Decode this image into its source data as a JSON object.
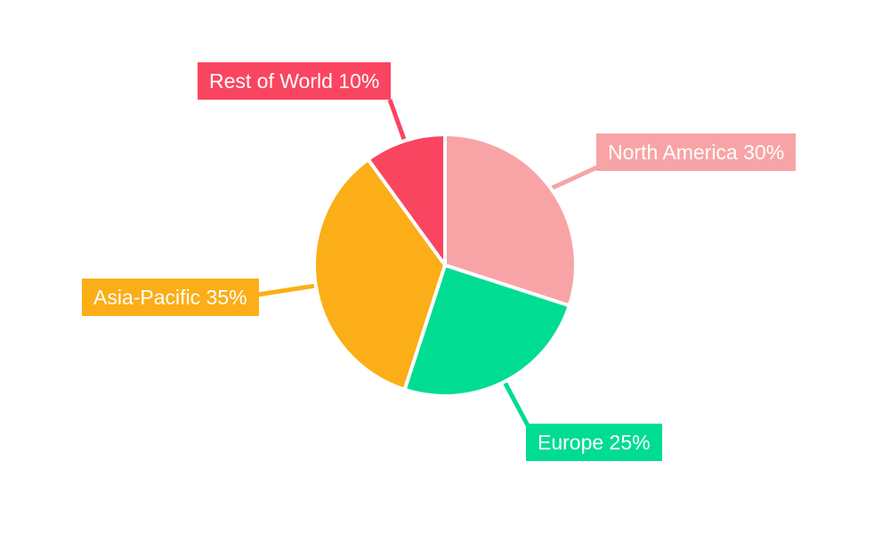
{
  "chart_data": {
    "type": "pie",
    "title": "",
    "legend_position": "none",
    "background": "#ffffff",
    "start_angle": "top, clockwise",
    "label_text_color": "#ffffff",
    "slices": [
      {
        "label": "North America",
        "value_pct": 30,
        "color": "#F8A4A6",
        "label_text": "North America 30%"
      },
      {
        "label": "Europe",
        "value_pct": 25,
        "color": "#00DC92",
        "label_text": "Europe 25%"
      },
      {
        "label": "Asia-Pacific",
        "value_pct": 35,
        "color": "#FBAE17",
        "label_text": "Asia-Pacific 35%"
      },
      {
        "label": "Rest of World",
        "value_pct": 10,
        "color": "#FA4560",
        "label_text": "Rest of World 10%"
      }
    ]
  }
}
